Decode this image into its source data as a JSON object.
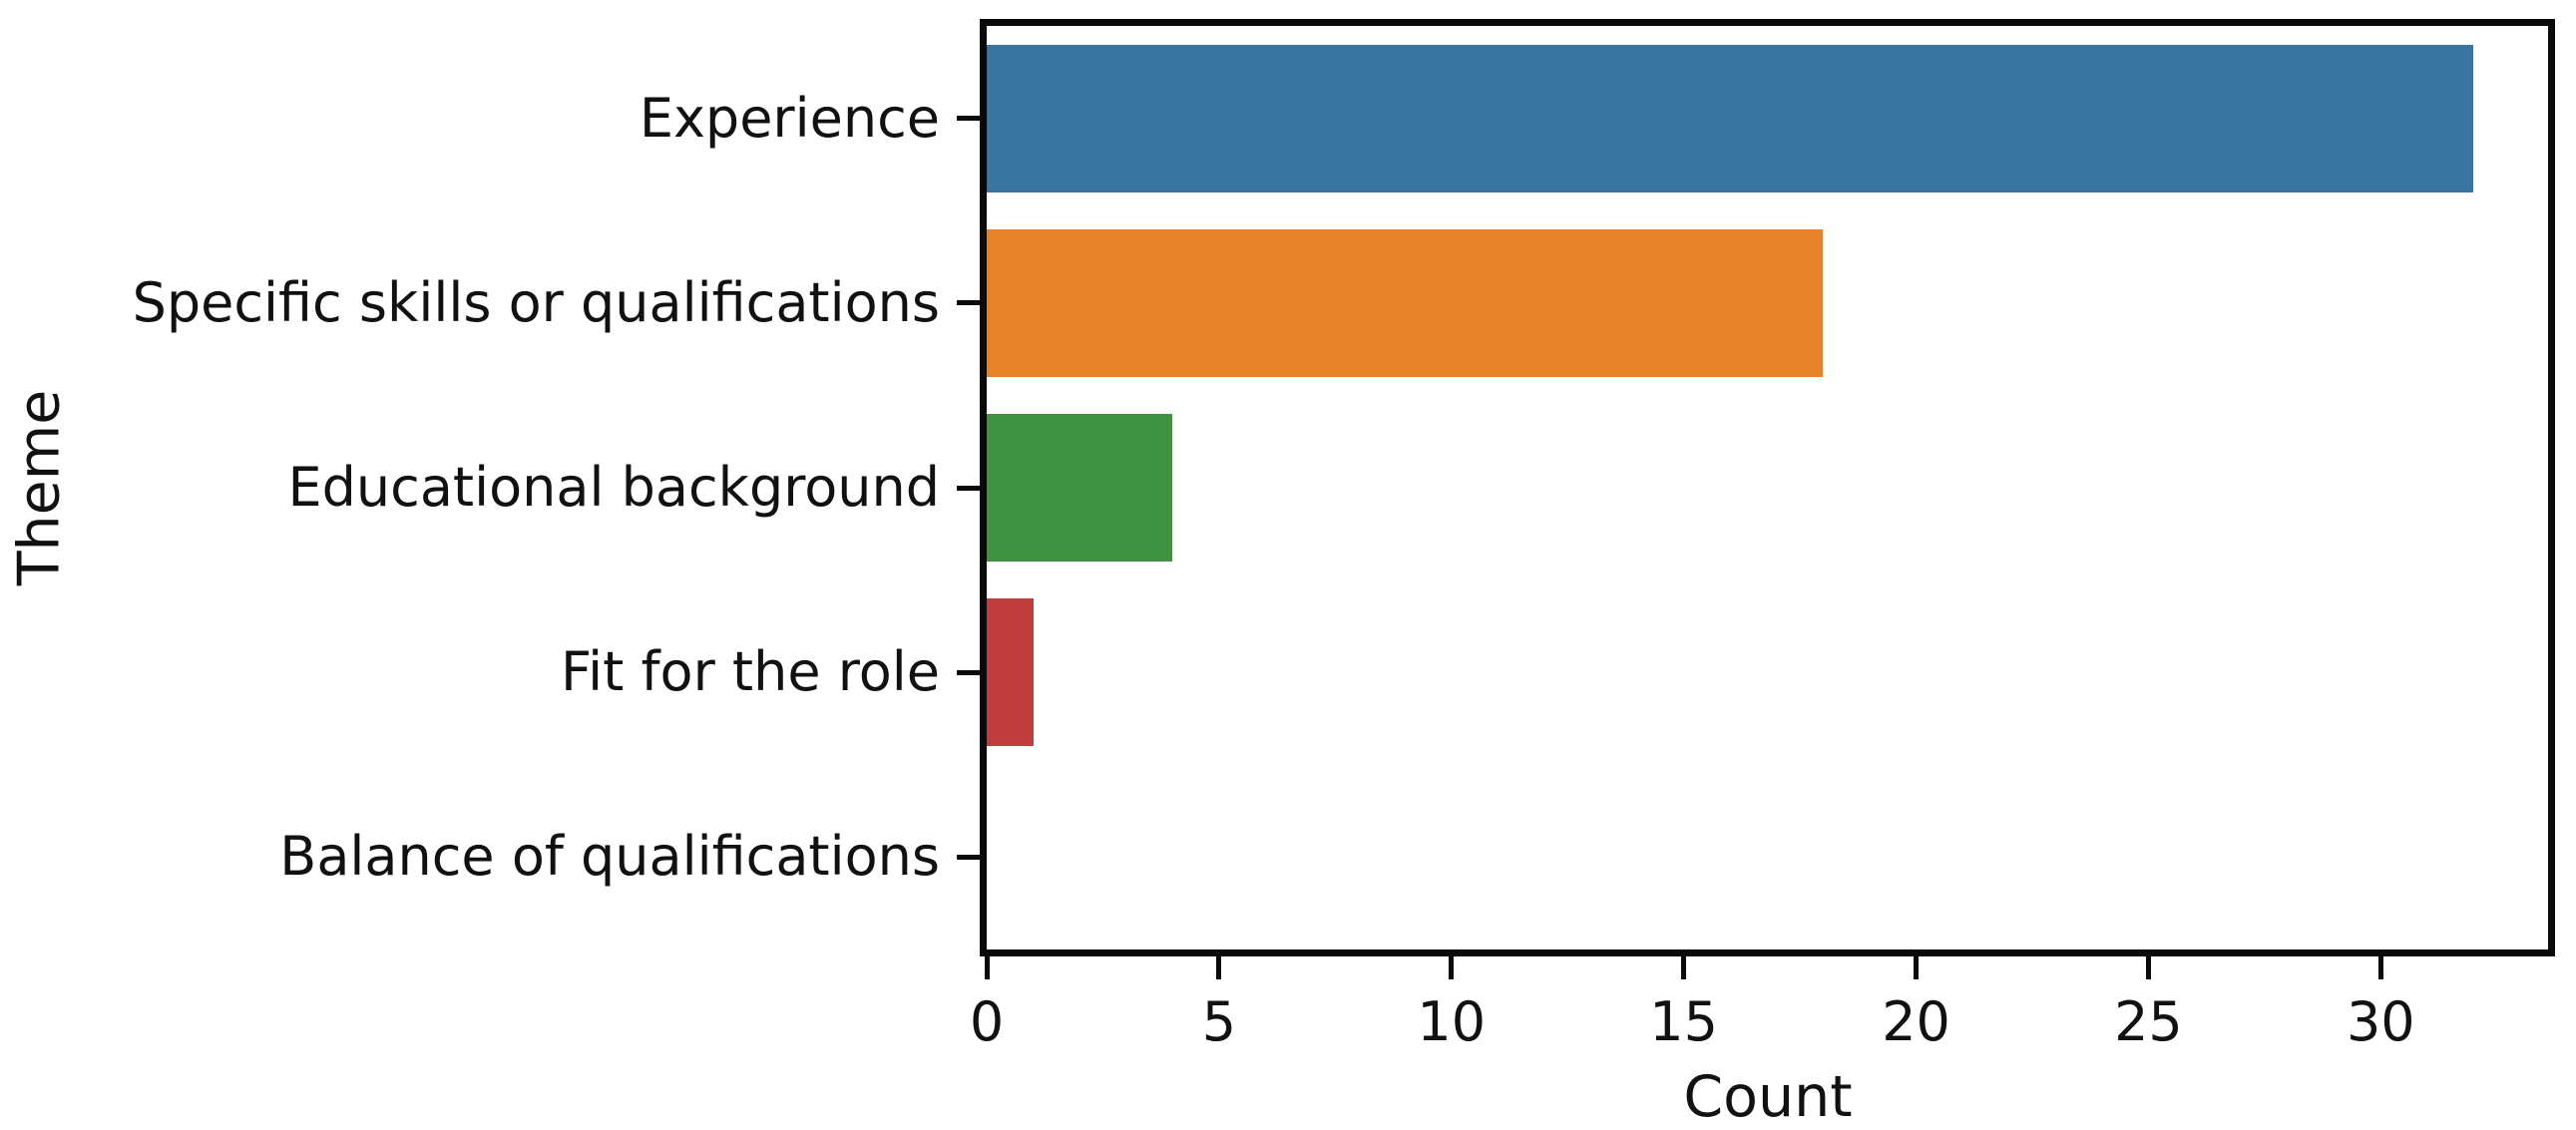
{
  "chart_data": {
    "type": "bar",
    "orientation": "horizontal",
    "title": "",
    "xlabel": "Count",
    "ylabel": "Theme",
    "categories": [
      "Experience",
      "Specific skills or qualifications",
      "Educational background",
      "Fit for the role",
      "Balance of qualifications"
    ],
    "values": [
      32,
      18,
      4,
      1,
      0
    ],
    "bar_colors": [
      "#3973A0",
      "#E8822B",
      "#3F923F",
      "#C03D3E",
      "transparent"
    ],
    "xlim": [
      0,
      33.6
    ],
    "xticks": [
      0,
      5,
      10,
      15,
      20,
      25,
      30
    ],
    "grid": false,
    "legend": false,
    "axis_color": "#0a0a0a",
    "text_color": "#111111",
    "background_color": "#ffffff",
    "bar_fraction_of_band": 0.8
  }
}
